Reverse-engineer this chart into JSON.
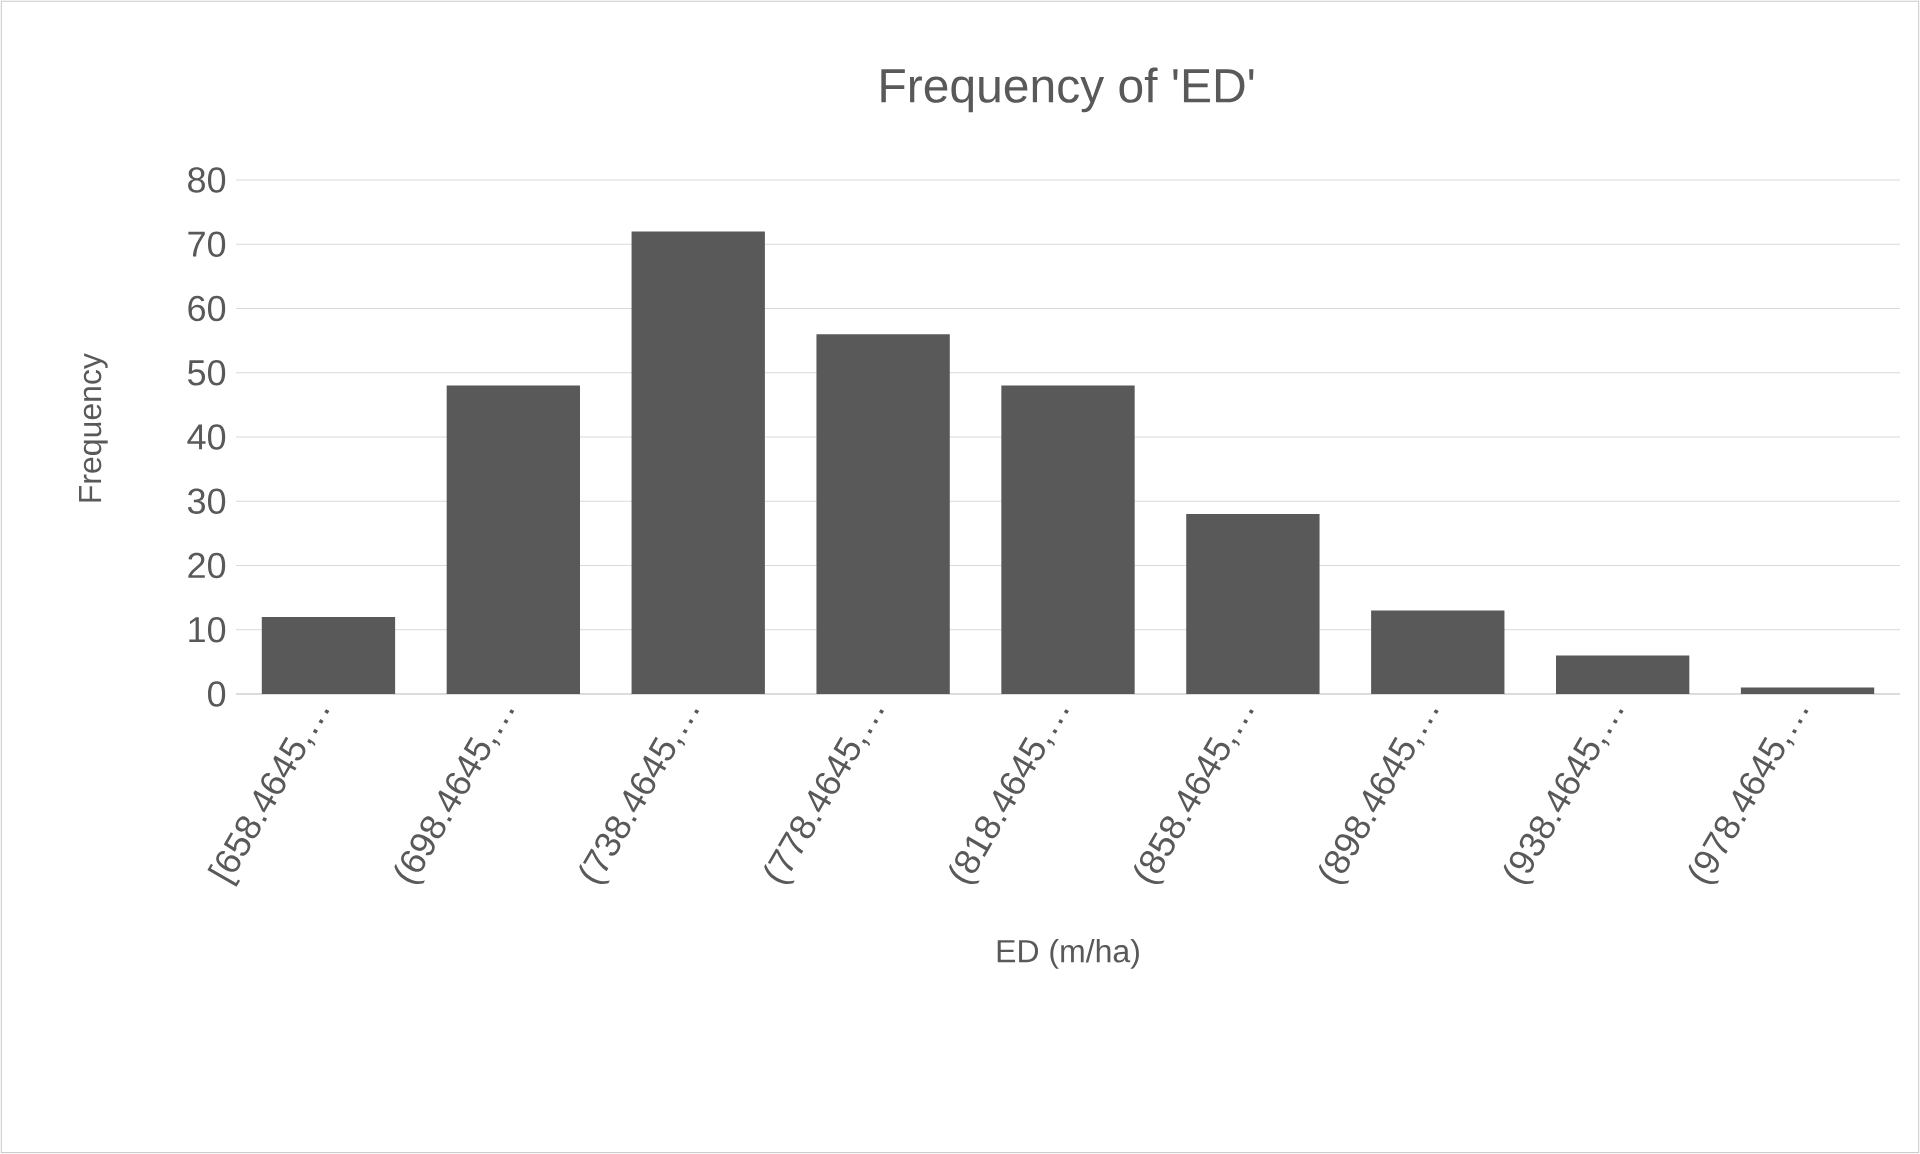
{
  "chart_data": {
    "type": "bar",
    "title": "Frequency of 'ED'",
    "xlabel": "ED (m/ha)",
    "ylabel": "Frequency",
    "categories": [
      "[658.4645,…",
      "(698.4645,…",
      "(738.4645,…",
      "(778.4645,…",
      "(818.4645,…",
      "(858.4645,…",
      "(898.4645,…",
      "(938.4645,…",
      "(978.4645,…"
    ],
    "values": [
      12,
      48,
      72,
      56,
      48,
      28,
      13,
      6,
      1
    ],
    "color": "#595959",
    "ylim": [
      0,
      80
    ],
    "yticks": [
      0,
      10,
      20,
      30,
      40,
      50,
      60,
      70,
      80
    ],
    "grid": "y"
  }
}
